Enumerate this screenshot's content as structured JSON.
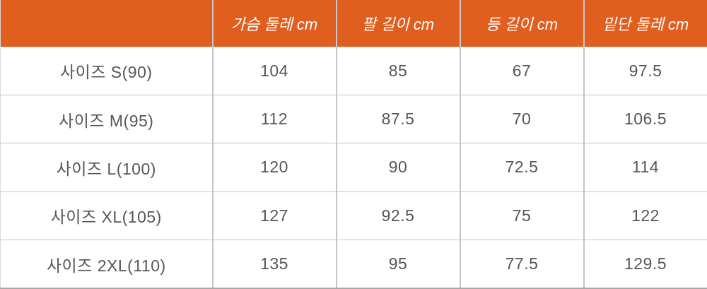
{
  "colors": {
    "header_bg": "#E05E1E",
    "header_text": "#FFFFFF",
    "body_text": "#55565A",
    "grid_border": "#C4C4C4",
    "bottom_border": "#A9A9A9"
  },
  "table": {
    "header": [
      "",
      "가슴 둘레 cm",
      "팔 길이 cm",
      "등 길이 cm",
      "밑단 둘레 cm"
    ],
    "rows": [
      {
        "cells": [
          "사이즈 S(90)",
          "104",
          "85",
          "67",
          "97.5"
        ]
      },
      {
        "cells": [
          "사이즈 M(95)",
          "112",
          "87.5",
          "70",
          "106.5"
        ]
      },
      {
        "cells": [
          "사이즈 L(100)",
          "120",
          "90",
          "72.5",
          "114"
        ]
      },
      {
        "cells": [
          "사이즈 XL(105)",
          "127",
          "92.5",
          "75",
          "122"
        ]
      },
      {
        "cells": [
          "사이즈 2XL(110)",
          "135",
          "95",
          "77.5",
          "129.5"
        ]
      }
    ]
  },
  "chart_data": {
    "type": "table",
    "title": "",
    "columns": [
      "",
      "가슴 둘레 cm",
      "팔 길이 cm",
      "등 길이 cm",
      "밑단 둘레 cm"
    ],
    "rows": [
      [
        "사이즈 S(90)",
        104,
        85,
        67,
        97.5
      ],
      [
        "사이즈 M(95)",
        112,
        87.5,
        70,
        106.5
      ],
      [
        "사이즈 L(100)",
        120,
        90,
        72.5,
        114
      ],
      [
        "사이즈 XL(105)",
        127,
        92.5,
        75,
        122
      ],
      [
        "사이즈 2XL(110)",
        135,
        95,
        77.5,
        129.5
      ]
    ]
  }
}
